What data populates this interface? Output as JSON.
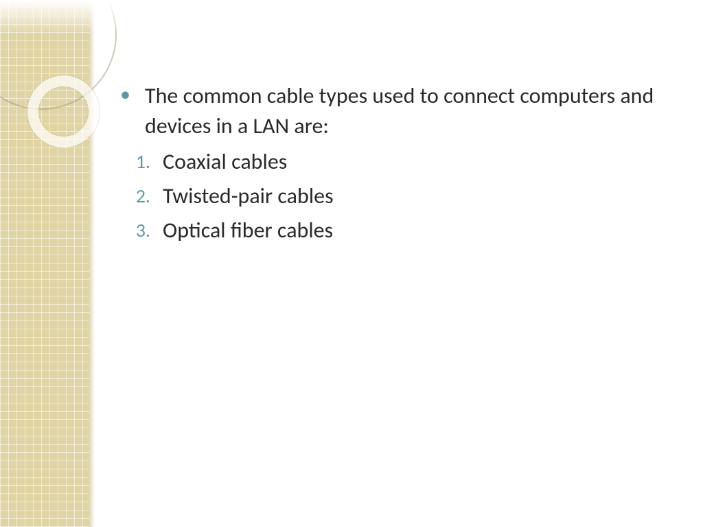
{
  "slide": {
    "intro_bullet": "The common cable types used to connect computers and devices in a LAN are:",
    "items": [
      {
        "n": "1.",
        "text": "Coaxial cables"
      },
      {
        "n": "2.",
        "text": "Twisted-pair cables"
      },
      {
        "n": "3.",
        "text": "Optical fiber cables"
      }
    ]
  },
  "style": {
    "accent_color": "#5a9aa8",
    "body_text_color": "#2a2a2a",
    "sidebar_grid_base": "#e0d4a4",
    "sidebar_grid_line": "#ffffff",
    "background": "#ffffff",
    "bullet_fontsize_pt": 24,
    "numbered_fontsize_pt": 24,
    "font_family": "Gill Sans"
  }
}
